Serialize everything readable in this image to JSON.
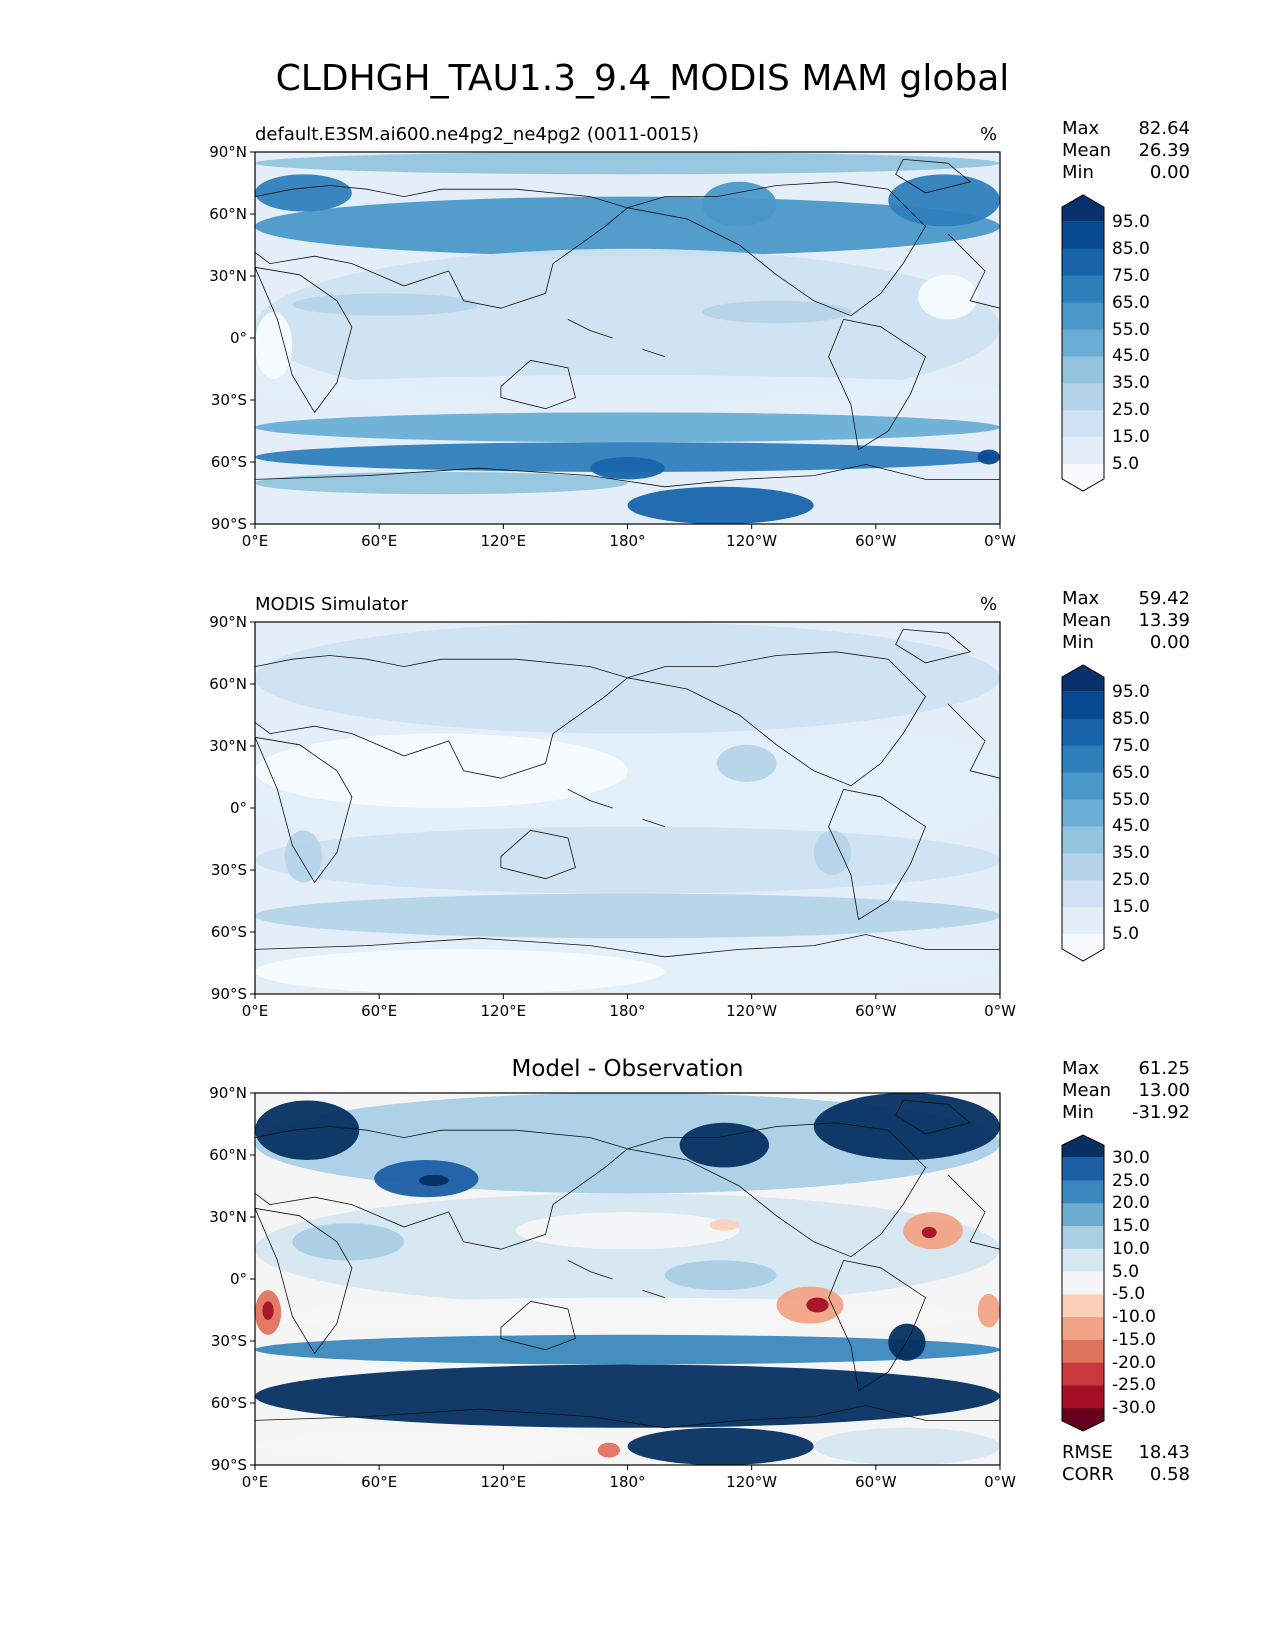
{
  "title": "CLDHGH_TAU1.3_9.4_MODIS MAM global",
  "axes": {
    "lat_labels": [
      "90°N",
      "60°N",
      "30°N",
      "0°",
      "30°S",
      "60°S",
      "90°S"
    ],
    "lon_labels": [
      "0°E",
      "60°E",
      "120°E",
      "180°",
      "120°W",
      "60°W",
      "0°W"
    ]
  },
  "panels": [
    {
      "id": "model",
      "left_title": "default.E3SM.ai600.ne4pg2_ne4pg2 (0011-0015)",
      "center_title": "",
      "units": "%",
      "stats": {
        "max_label": "Max",
        "max": "82.64",
        "mean_label": "Mean",
        "mean": "26.39",
        "min_label": "Min",
        "min": "0.00"
      },
      "colorbar_labels": [
        "95.0",
        "85.0",
        "75.0",
        "65.0",
        "55.0",
        "45.0",
        "35.0",
        "25.0",
        "15.0",
        "5.0"
      ],
      "colorbar_colors": [
        "#f7fbff",
        "#e3eef9",
        "#cfe1f2",
        "#b5d4e9",
        "#93c4de",
        "#6aaed6",
        "#4a98c9",
        "#2e7ebc",
        "#1764ab",
        "#084a91",
        "#08306b"
      ]
    },
    {
      "id": "obs",
      "left_title": "MODIS Simulator",
      "center_title": "",
      "units": "%",
      "stats": {
        "max_label": "Max",
        "max": "59.42",
        "mean_label": "Mean",
        "mean": "13.39",
        "min_label": "Min",
        "min": "0.00"
      },
      "colorbar_labels": [
        "95.0",
        "85.0",
        "75.0",
        "65.0",
        "55.0",
        "45.0",
        "35.0",
        "25.0",
        "15.0",
        "5.0"
      ],
      "colorbar_colors": [
        "#f7fbff",
        "#e3eef9",
        "#cfe1f2",
        "#b5d4e9",
        "#93c4de",
        "#6aaed6",
        "#4a98c9",
        "#2e7ebc",
        "#1764ab",
        "#084a91",
        "#08306b"
      ]
    },
    {
      "id": "diff",
      "left_title": "",
      "center_title": "Model - Observation",
      "units": "",
      "stats": {
        "max_label": "Max",
        "max": "61.25",
        "mean_label": "Mean",
        "mean": "13.00",
        "min_label": "Min",
        "min": "-31.92"
      },
      "colorbar_labels": [
        "30.0",
        "25.0",
        "20.0",
        "15.0",
        "10.0",
        "5.0",
        "-5.0",
        "-10.0",
        "-15.0",
        "-20.0",
        "-25.0",
        "-30.0"
      ],
      "colorbar_colors": [
        "#67001f",
        "#a50f26",
        "#c8393c",
        "#e0735e",
        "#f2a385",
        "#fbd0b9",
        "#f5f5f5",
        "#d6e7f1",
        "#a9cfe5",
        "#6eabd1",
        "#3a88bd",
        "#1b5fa4",
        "#053061"
      ]
    }
  ],
  "bottom_stats": {
    "rmse_label": "RMSE",
    "rmse": "18.43",
    "corr_label": "CORR",
    "corr": "0.58"
  }
}
